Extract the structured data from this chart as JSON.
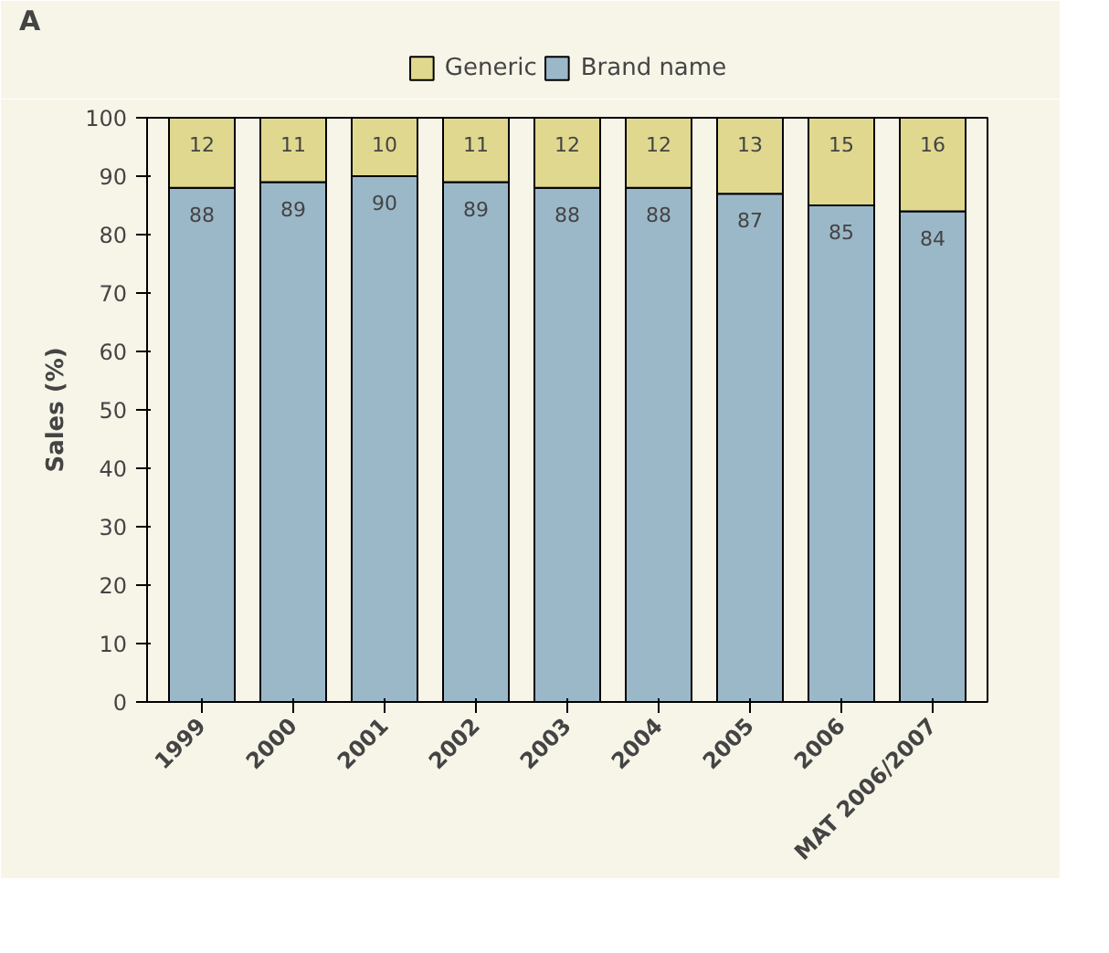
{
  "chart_data": {
    "type": "bar",
    "stacked": true,
    "ylabel": "Sales (%)",
    "annotations": [
      "A"
    ],
    "categories": [
      "1999",
      "2000",
      "2001",
      "2002",
      "2003",
      "2004",
      "2005",
      "2006",
      "MAT 2006/2007"
    ],
    "series": [
      {
        "name": "Brand name",
        "color": "#9bb8c9",
        "values": [
          88,
          89,
          90,
          89,
          88,
          88,
          87,
          85,
          84
        ]
      },
      {
        "name": "Generic",
        "color": "#e0d88f",
        "values": [
          12,
          11,
          10,
          11,
          12,
          12,
          13,
          15,
          16
        ]
      }
    ],
    "ylim": [
      0,
      100
    ],
    "yticks": [
      0,
      10,
      20,
      30,
      40,
      50,
      60,
      70,
      80,
      90,
      100
    ],
    "grid": false,
    "legend": "top",
    "data_labels": true
  }
}
